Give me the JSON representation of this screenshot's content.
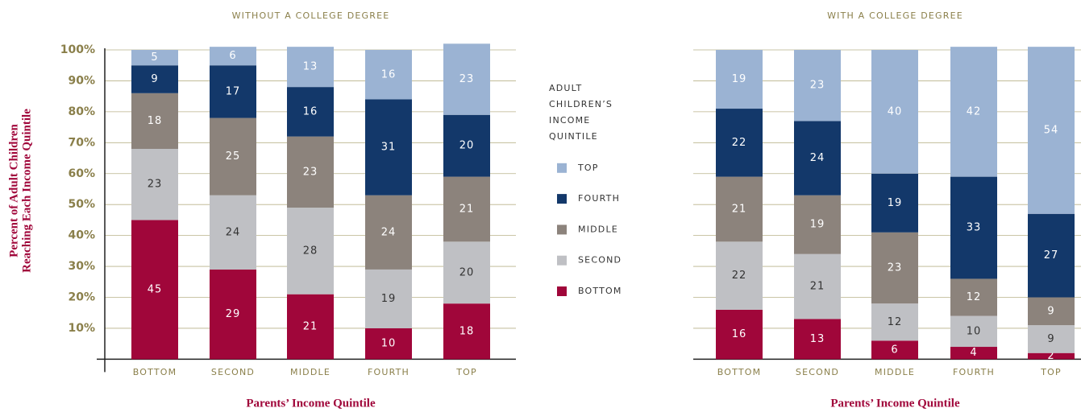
{
  "chart_data": [
    {
      "type": "bar",
      "stacked": true,
      "title": "Without a College Degree",
      "xlabel": "Parents’ Income Quintile",
      "ylabel": [
        "Percent of Adult Children",
        "Reaching Each Income Quintile"
      ],
      "legend_title": [
        "Adult",
        "Children’s",
        "Income",
        "Quintile"
      ],
      "categories": [
        "bottom",
        "second",
        "middle",
        "fourth",
        "top"
      ],
      "ylim": [
        0,
        100
      ],
      "yticks": [
        {
          "value": 10,
          "label": "10%"
        },
        {
          "value": 20,
          "label": "20%"
        },
        {
          "value": 30,
          "label": "30%"
        },
        {
          "value": 40,
          "label": "40%"
        },
        {
          "value": 50,
          "label": "50%"
        },
        {
          "value": 60,
          "label": "60%"
        },
        {
          "value": 70,
          "label": "70%"
        },
        {
          "value": 80,
          "label": "80%"
        },
        {
          "value": 90,
          "label": "90%"
        },
        {
          "value": 100,
          "label": "100%"
        }
      ],
      "grid": true,
      "series": [
        {
          "name": "bottom",
          "color": "#a0063a",
          "values": [
            45,
            29,
            21,
            10,
            18
          ]
        },
        {
          "name": "second",
          "color": "#bfc0c4",
          "values": [
            23,
            24,
            28,
            19,
            20
          ]
        },
        {
          "name": "middle",
          "color": "#8c837c",
          "values": [
            18,
            25,
            23,
            24,
            21
          ]
        },
        {
          "name": "fourth",
          "color": "#13386a",
          "values": [
            9,
            17,
            16,
            31,
            20
          ]
        },
        {
          "name": "top",
          "color": "#9bb3d3",
          "values": [
            5,
            6,
            13,
            16,
            23
          ]
        }
      ]
    },
    {
      "type": "bar",
      "stacked": true,
      "title": "With a College Degree",
      "xlabel": "Parents’ Income Quintile",
      "categories": [
        "bottom",
        "second",
        "middle",
        "fourth",
        "top"
      ],
      "ylim": [
        0,
        100
      ],
      "grid": true,
      "series": [
        {
          "color": "#a0063a",
          "values": [
            16,
            13,
            6,
            4,
            2
          ]
        },
        {
          "color": "#bfc0c4",
          "values": [
            22,
            21,
            12,
            10,
            9
          ]
        },
        {
          "color": "#8c837c",
          "values": [
            21,
            19,
            23,
            12,
            9
          ]
        },
        {
          "color": "#13386a",
          "values": [
            22,
            24,
            19,
            33,
            27
          ]
        },
        {
          "color": "#9bb3d3",
          "values": [
            19,
            23,
            40,
            42,
            54
          ]
        }
      ]
    }
  ]
}
